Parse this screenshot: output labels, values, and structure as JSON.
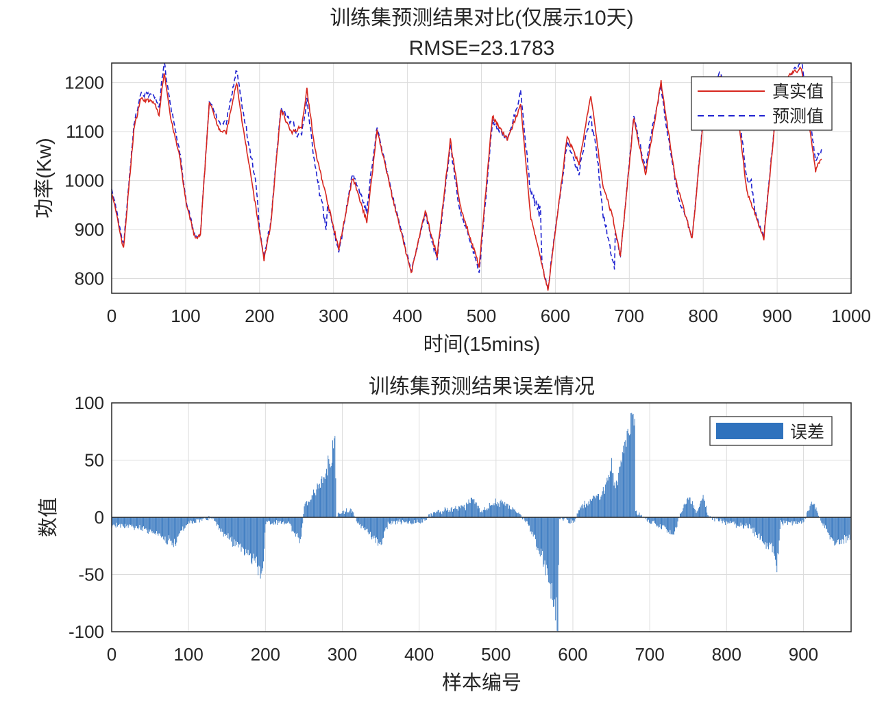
{
  "chart_data": [
    {
      "type": "line",
      "title": "训练集预测结果对比(仅展示10天)",
      "subtitle": "RMSE=23.1783",
      "xlabel": "时间(15mins)",
      "ylabel": "功率(Kw)",
      "xlim": [
        0,
        1000
      ],
      "ylim": [
        770,
        1240
      ],
      "xticks": [
        "0",
        "100",
        "200",
        "300",
        "400",
        "500",
        "600",
        "700",
        "800",
        "900",
        "1000"
      ],
      "yticks": [
        "800",
        "900",
        "1000",
        "1100",
        "1200"
      ],
      "grid": true,
      "legend_position": "top-right",
      "series": [
        {
          "name": "真实值",
          "color": "#d7261e",
          "style": "solid",
          "keypoints": [
            [
              0,
              978
            ],
            [
              16,
              860
            ],
            [
              30,
              1104
            ],
            [
              39,
              1167
            ],
            [
              57,
              1160
            ],
            [
              64,
              1135
            ],
            [
              71,
              1222
            ],
            [
              81,
              1118
            ],
            [
              92,
              1048
            ],
            [
              101,
              950
            ],
            [
              113,
              881
            ],
            [
              120,
              888
            ],
            [
              132,
              1160
            ],
            [
              146,
              1104
            ],
            [
              155,
              1097
            ],
            [
              169,
              1201
            ],
            [
              178,
              1104
            ],
            [
              190,
              992
            ],
            [
              206,
              839
            ],
            [
              215,
              909
            ],
            [
              229,
              1146
            ],
            [
              243,
              1097
            ],
            [
              257,
              1111
            ],
            [
              264,
              1188
            ],
            [
              275,
              1062
            ],
            [
              284,
              1006
            ],
            [
              307,
              860
            ],
            [
              326,
              1006
            ],
            [
              345,
              916
            ],
            [
              359,
              1104
            ],
            [
              380,
              964
            ],
            [
              405,
              811
            ],
            [
              424,
              937
            ],
            [
              440,
              846
            ],
            [
              458,
              1083
            ],
            [
              471,
              950
            ],
            [
              497,
              825
            ],
            [
              515,
              1132
            ],
            [
              535,
              1083
            ],
            [
              553,
              1153
            ],
            [
              567,
              923
            ],
            [
              590,
              776
            ],
            [
              616,
              1090
            ],
            [
              632,
              1034
            ],
            [
              648,
              1174
            ],
            [
              664,
              992
            ],
            [
              678,
              923
            ],
            [
              688,
              846
            ],
            [
              706,
              1125
            ],
            [
              722,
              1013
            ],
            [
              743,
              1201
            ],
            [
              762,
              1006
            ],
            [
              785,
              881
            ],
            [
              799,
              1104
            ],
            [
              822,
              1215
            ],
            [
              845,
              1160
            ],
            [
              859,
              978
            ],
            [
              882,
              881
            ],
            [
              896,
              1104
            ],
            [
              915,
              1215
            ],
            [
              933,
              1229
            ],
            [
              952,
              1020
            ],
            [
              960,
              1048
            ]
          ]
        },
        {
          "name": "预测值",
          "color": "#1f22d0",
          "style": "dashed",
          "definition": "真实值 - 误差"
        }
      ]
    },
    {
      "type": "bar",
      "title": "训练集预测结果误差情况",
      "xlabel": "样本编号",
      "ylabel": "数值",
      "xlim": [
        0,
        962
      ],
      "ylim": [
        -100,
        100
      ],
      "xticks": [
        "0",
        "100",
        "200",
        "300",
        "400",
        "500",
        "600",
        "700",
        "800",
        "900"
      ],
      "yticks": [
        "-100",
        "-50",
        "0",
        "50",
        "100"
      ],
      "grid": true,
      "legend_position": "top-right",
      "series": [
        {
          "name": "误差",
          "color": "#2f72bd",
          "keypoints": [
            [
              0,
              -8
            ],
            [
              40,
              -10
            ],
            [
              80,
              -25
            ],
            [
              100,
              -5
            ],
            [
              130,
              0
            ],
            [
              150,
              -20
            ],
            [
              185,
              -40
            ],
            [
              195,
              -60
            ],
            [
              200,
              -5
            ],
            [
              230,
              -5
            ],
            [
              245,
              -25
            ],
            [
              250,
              10
            ],
            [
              270,
              30
            ],
            [
              285,
              60
            ],
            [
              290,
              85
            ],
            [
              292,
              2
            ],
            [
              310,
              8
            ],
            [
              320,
              -5
            ],
            [
              340,
              -20
            ],
            [
              350,
              -25
            ],
            [
              360,
              -5
            ],
            [
              400,
              -5
            ],
            [
              420,
              5
            ],
            [
              460,
              10
            ],
            [
              470,
              20
            ],
            [
              480,
              5
            ],
            [
              500,
              15
            ],
            [
              520,
              10
            ],
            [
              540,
              -5
            ],
            [
              560,
              -40
            ],
            [
              575,
              -80
            ],
            [
              580,
              -100
            ],
            [
              582,
              0
            ],
            [
              600,
              -5
            ],
            [
              610,
              10
            ],
            [
              640,
              25
            ],
            [
              650,
              50
            ],
            [
              655,
              30
            ],
            [
              665,
              60
            ],
            [
              675,
              90
            ],
            [
              680,
              95
            ],
            [
              681,
              5
            ],
            [
              700,
              -5
            ],
            [
              720,
              -10
            ],
            [
              730,
              -20
            ],
            [
              740,
              5
            ],
            [
              750,
              20
            ],
            [
              760,
              5
            ],
            [
              770,
              20
            ],
            [
              775,
              0
            ],
            [
              800,
              -5
            ],
            [
              830,
              -10
            ],
            [
              850,
              -25
            ],
            [
              860,
              -30
            ],
            [
              865,
              -50
            ],
            [
              870,
              -5
            ],
            [
              900,
              -5
            ],
            [
              910,
              15
            ],
            [
              915,
              10
            ],
            [
              920,
              0
            ],
            [
              940,
              -25
            ],
            [
              960,
              -20
            ]
          ]
        }
      ]
    }
  ]
}
